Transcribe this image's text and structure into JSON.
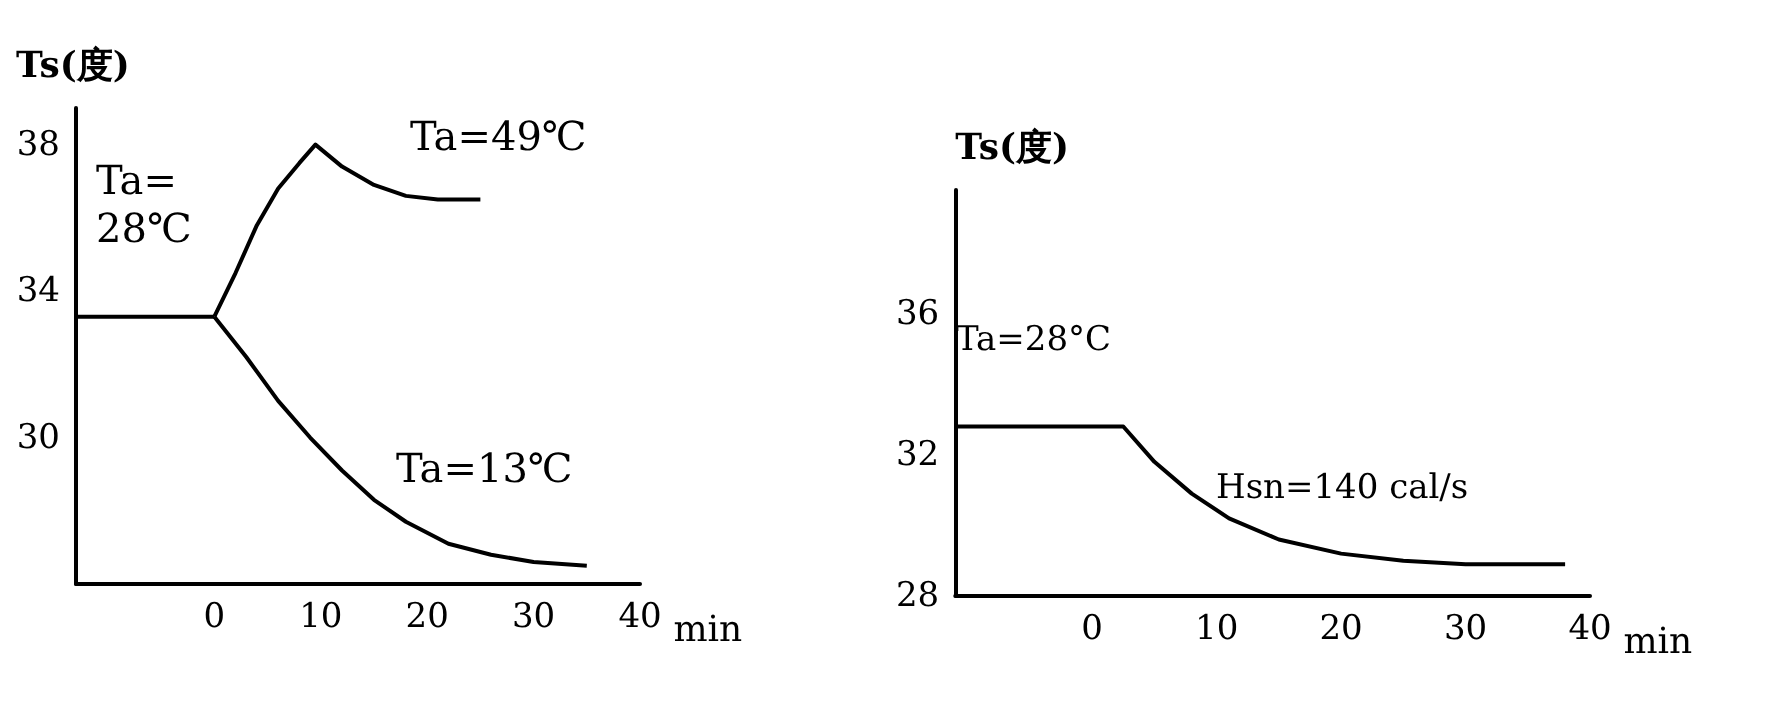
{
  "chart_data": [
    {
      "type": "line",
      "ylabel": "Ts(度)",
      "xlabel": "min",
      "xlim": [
        -13,
        40
      ],
      "xticks": [
        0,
        10,
        20,
        30,
        40
      ],
      "ylim": [
        26,
        39
      ],
      "yticks": [
        30,
        34,
        38
      ],
      "grid": false,
      "marker": "none",
      "line_style": "solid",
      "series": [
        {
          "color": "#000000",
          "x": [
            -13,
            0
          ],
          "values": [
            33.3,
            33.3
          ]
        },
        {
          "color": "#000000",
          "x": [
            0,
            2,
            4,
            6,
            8,
            9.5,
            12,
            15,
            18,
            21,
            25
          ],
          "values": [
            33.3,
            34.5,
            35.8,
            36.8,
            37.5,
            38,
            37.4,
            36.9,
            36.6,
            36.5,
            36.5
          ]
        },
        {
          "color": "#000000",
          "x": [
            0,
            3,
            6,
            9,
            12,
            15,
            18,
            22,
            26,
            30,
            35
          ],
          "values": [
            33.3,
            32.2,
            31,
            30,
            29.1,
            28.3,
            27.7,
            27.1,
            26.8,
            26.6,
            26.5
          ]
        }
      ],
      "annotations": [
        "Ta=\n28℃",
        "Ta=49℃",
        "Ta=13℃"
      ]
    },
    {
      "type": "line",
      "ylabel": "Ts(度)",
      "xlabel": "min",
      "xlim": [
        -11,
        40
      ],
      "xticks": [
        0,
        10,
        20,
        30,
        40
      ],
      "ylim": [
        28,
        39.5
      ],
      "yticks": [
        28,
        32,
        36
      ],
      "grid": false,
      "marker": "none",
      "line_style": "solid",
      "series": [
        {
          "color": "#000000",
          "x": [
            -11,
            2.5,
            5,
            8,
            11,
            15,
            20,
            25,
            30,
            38
          ],
          "values": [
            32.8,
            32.8,
            31.8,
            30.9,
            30.2,
            29.6,
            29.2,
            29,
            28.9,
            28.9
          ]
        }
      ],
      "annotations": [
        "Ta=28°C",
        "Hsn=140 cal/s"
      ]
    }
  ]
}
